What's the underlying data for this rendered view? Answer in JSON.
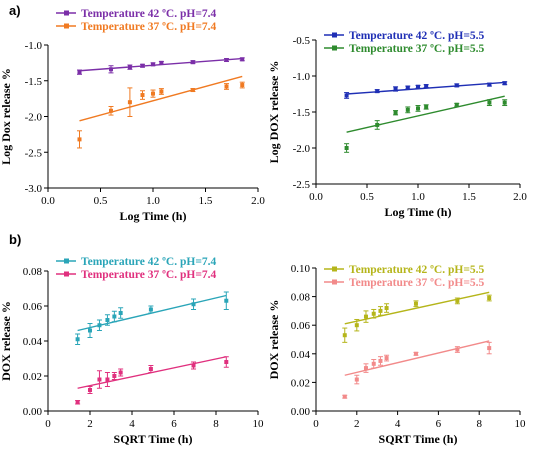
{
  "panel_labels": {
    "a": "a)",
    "b": "b)"
  },
  "chart_data": [
    {
      "id": "a-left",
      "type": "scatter",
      "xlabel": "Log Time (h)",
      "ylabel": "Log Dox release %",
      "xlim": [
        0.0,
        2.0
      ],
      "ylim": [
        -3.0,
        -1.0
      ],
      "xticks": [
        0.0,
        0.5,
        1.0,
        1.5,
        2.0
      ],
      "xtick_labels": [
        "0.0",
        "0.5",
        "1.0",
        "1.5",
        "2.0"
      ],
      "yticks": [
        -3.0,
        -2.5,
        -2.0,
        -1.5,
        -1.0
      ],
      "ytick_labels": [
        "-3.0",
        "-2.5",
        "-2.0",
        "-1.5",
        "-1.0"
      ],
      "legend_position": "top-left",
      "series": [
        {
          "name": "Temperature 42 ºC. pH=7.4",
          "color": "#7b2fa8",
          "x": [
            0.3,
            0.6,
            0.78,
            0.9,
            1.0,
            1.08,
            1.38,
            1.7,
            1.85
          ],
          "y": [
            -1.38,
            -1.34,
            -1.31,
            -1.29,
            -1.27,
            -1.25,
            -1.24,
            -1.21,
            -1.2
          ],
          "err": [
            0.03,
            0.05,
            0.03,
            0.02,
            0.02,
            0.02,
            0.02,
            0.02,
            0.02
          ],
          "fit": [
            [
              0.3,
              -1.36
            ],
            [
              1.85,
              -1.19
            ]
          ]
        },
        {
          "name": "Temperature 37 ºC. pH=7.4",
          "color": "#f07a22",
          "x": [
            0.3,
            0.6,
            0.78,
            0.9,
            1.0,
            1.08,
            1.38,
            1.7,
            1.85
          ],
          "y": [
            -2.32,
            -1.92,
            -1.8,
            -1.7,
            -1.68,
            -1.65,
            -1.63,
            -1.58,
            -1.56
          ],
          "err": [
            0.12,
            0.06,
            0.2,
            0.06,
            0.05,
            0.04,
            0.02,
            0.04,
            0.04
          ],
          "fit": [
            [
              0.3,
              -2.06
            ],
            [
              1.85,
              -1.44
            ]
          ]
        }
      ]
    },
    {
      "id": "a-right",
      "type": "scatter",
      "xlabel": "Log Time (h)",
      "ylabel": "Log DOX release %",
      "xlim": [
        0.0,
        2.0
      ],
      "ylim": [
        -2.5,
        -0.5
      ],
      "xticks": [
        0.0,
        0.5,
        1.0,
        1.5,
        2.0
      ],
      "xtick_labels": [
        "0.0",
        "0.5",
        "1.0",
        "1.5",
        "2.0"
      ],
      "yticks": [
        -2.5,
        -2.0,
        -1.5,
        -1.0,
        -0.5
      ],
      "ytick_labels": [
        "-2.5",
        "-2.0",
        "-1.5",
        "-1.0",
        "-0.5"
      ],
      "legend_position": "top-left",
      "series": [
        {
          "name": "Temperature 42 ºC. pH=5.5",
          "color": "#1f2fb5",
          "x": [
            0.3,
            0.6,
            0.78,
            0.9,
            1.0,
            1.08,
            1.38,
            1.7,
            1.85
          ],
          "y": [
            -1.27,
            -1.21,
            -1.18,
            -1.16,
            -1.15,
            -1.14,
            -1.13,
            -1.12,
            -1.1
          ],
          "err": [
            0.04,
            0.02,
            0.03,
            0.02,
            0.02,
            0.02,
            0.02,
            0.02,
            0.02
          ],
          "fit": [
            [
              0.3,
              -1.25
            ],
            [
              1.85,
              -1.09
            ]
          ]
        },
        {
          "name": "Temperature 37 ºC. pH=5.5",
          "color": "#2e8b2e",
          "x": [
            0.3,
            0.6,
            0.78,
            0.9,
            1.0,
            1.08,
            1.38,
            1.7,
            1.85
          ],
          "y": [
            -2.0,
            -1.68,
            -1.51,
            -1.47,
            -1.45,
            -1.43,
            -1.4,
            -1.37,
            -1.37
          ],
          "err": [
            0.06,
            0.06,
            0.03,
            0.04,
            0.04,
            0.03,
            0.02,
            0.04,
            0.04
          ],
          "fit": [
            [
              0.3,
              -1.78
            ],
            [
              1.85,
              -1.28
            ]
          ]
        }
      ]
    },
    {
      "id": "b-left",
      "type": "scatter",
      "xlabel": "SQRT Time (h)",
      "ylabel": "DOX release %",
      "xlim": [
        0,
        10
      ],
      "ylim": [
        0.0,
        0.08
      ],
      "xticks": [
        0,
        2,
        4,
        6,
        8,
        10
      ],
      "xtick_labels": [
        "0",
        "2",
        "4",
        "6",
        "8",
        "10"
      ],
      "yticks": [
        0.0,
        0.02,
        0.04,
        0.06,
        0.08
      ],
      "ytick_labels": [
        "0.00",
        "0.02",
        "0.04",
        "0.06",
        "0.08"
      ],
      "legend_position": "top-left",
      "series": [
        {
          "name": "Temperature 42 ºC. pH=7.4",
          "color": "#2aa5b8",
          "x": [
            1.41,
            2.0,
            2.45,
            2.83,
            3.16,
            3.46,
            4.9,
            6.93,
            8.49
          ],
          "y": [
            0.041,
            0.046,
            0.049,
            0.052,
            0.054,
            0.056,
            0.058,
            0.061,
            0.063
          ],
          "err": [
            0.003,
            0.004,
            0.003,
            0.003,
            0.003,
            0.003,
            0.002,
            0.003,
            0.005
          ],
          "fit": [
            [
              1.41,
              0.046
            ],
            [
              8.49,
              0.066
            ]
          ]
        },
        {
          "name": "Temperature 37 ºC. pH=7.4",
          "color": "#e0307e",
          "x": [
            1.41,
            2.0,
            2.45,
            2.83,
            3.16,
            3.46,
            4.9,
            6.93,
            8.49
          ],
          "y": [
            0.005,
            0.012,
            0.018,
            0.018,
            0.02,
            0.022,
            0.024,
            0.026,
            0.028
          ],
          "err": [
            0.001,
            0.002,
            0.005,
            0.004,
            0.002,
            0.002,
            0.002,
            0.002,
            0.003
          ],
          "fit": [
            [
              1.41,
              0.013
            ],
            [
              8.49,
              0.031
            ]
          ]
        }
      ]
    },
    {
      "id": "b-right",
      "type": "scatter",
      "xlabel": "SQRT Time (h)",
      "ylabel": "DOX release %",
      "xlim": [
        0,
        10
      ],
      "ylim": [
        0.0,
        0.1
      ],
      "xticks": [
        0,
        2,
        4,
        6,
        8,
        10
      ],
      "xtick_labels": [
        "0",
        "2",
        "4",
        "6",
        "8",
        "10"
      ],
      "yticks": [
        0.0,
        0.02,
        0.04,
        0.06,
        0.08,
        0.1
      ],
      "ytick_labels": [
        "0.00",
        "0.02",
        "0.04",
        "0.06",
        "0.08",
        "0.10"
      ],
      "legend_position": "top-left",
      "series": [
        {
          "name": "Temperature 42 ºC. pH=5.5",
          "color": "#b5b51a",
          "x": [
            1.41,
            2.0,
            2.45,
            2.83,
            3.16,
            3.46,
            4.9,
            6.93,
            8.49
          ],
          "y": [
            0.053,
            0.06,
            0.066,
            0.068,
            0.07,
            0.072,
            0.075,
            0.077,
            0.079
          ],
          "err": [
            0.005,
            0.004,
            0.004,
            0.003,
            0.003,
            0.003,
            0.002,
            0.002,
            0.002
          ],
          "fit": [
            [
              1.41,
              0.061
            ],
            [
              8.49,
              0.083
            ]
          ]
        },
        {
          "name": "Temperature 37 ºC. pH=5.5",
          "color": "#f28a8a",
          "x": [
            1.41,
            2.0,
            2.45,
            2.83,
            3.16,
            3.46,
            4.9,
            6.93,
            8.49
          ],
          "y": [
            0.01,
            0.022,
            0.03,
            0.033,
            0.035,
            0.037,
            0.04,
            0.043,
            0.044
          ],
          "err": [
            0.001,
            0.003,
            0.003,
            0.003,
            0.003,
            0.002,
            0.001,
            0.002,
            0.004
          ],
          "fit": [
            [
              1.41,
              0.025
            ],
            [
              8.49,
              0.049
            ]
          ]
        }
      ]
    }
  ]
}
